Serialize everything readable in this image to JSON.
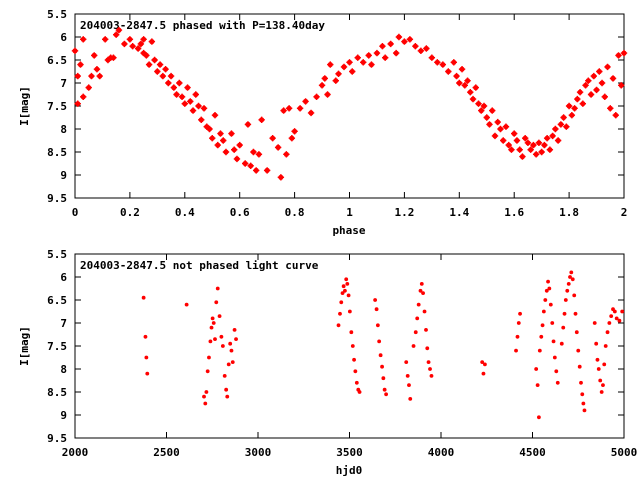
{
  "chart_data": [
    {
      "type": "scatter",
      "title": "204003-2847.5 phased with P=138.40day",
      "xlabel": "phase",
      "ylabel": "I[mag]",
      "xlim": [
        0,
        2
      ],
      "ylim": [
        5.5,
        9.5
      ],
      "y_inverted": true,
      "xticks": [
        "0",
        "0.2",
        "0.4",
        "0.6",
        "0.8",
        "1",
        "1.2",
        "1.4",
        "1.6",
        "1.8",
        "2"
      ],
      "yticks": [
        "5.5",
        "6",
        "6.5",
        "7",
        "7.5",
        "8",
        "8.5",
        "9",
        "9.5"
      ],
      "grid": false,
      "marker_color": "#ff0000",
      "points": [
        [
          0.0,
          6.3
        ],
        [
          0.01,
          6.85
        ],
        [
          0.01,
          7.45
        ],
        [
          0.02,
          6.6
        ],
        [
          0.03,
          7.3
        ],
        [
          0.03,
          6.05
        ],
        [
          0.05,
          7.1
        ],
        [
          0.06,
          6.85
        ],
        [
          0.07,
          6.4
        ],
        [
          0.08,
          6.7
        ],
        [
          0.09,
          6.85
        ],
        [
          0.11,
          6.05
        ],
        [
          0.12,
          6.5
        ],
        [
          0.13,
          6.45
        ],
        [
          0.14,
          6.45
        ],
        [
          0.15,
          5.95
        ],
        [
          0.16,
          5.85
        ],
        [
          0.18,
          6.15
        ],
        [
          0.2,
          6.05
        ],
        [
          0.21,
          6.2
        ],
        [
          0.23,
          6.25
        ],
        [
          0.24,
          6.15
        ],
        [
          0.25,
          6.05
        ],
        [
          0.25,
          6.35
        ],
        [
          0.26,
          6.4
        ],
        [
          0.27,
          6.6
        ],
        [
          0.28,
          6.1
        ],
        [
          0.29,
          6.5
        ],
        [
          0.3,
          6.75
        ],
        [
          0.31,
          6.6
        ],
        [
          0.32,
          6.85
        ],
        [
          0.33,
          6.7
        ],
        [
          0.34,
          7.0
        ],
        [
          0.35,
          6.85
        ],
        [
          0.36,
          7.1
        ],
        [
          0.37,
          7.25
        ],
        [
          0.38,
          7.0
        ],
        [
          0.39,
          7.3
        ],
        [
          0.4,
          7.45
        ],
        [
          0.41,
          7.1
        ],
        [
          0.42,
          7.4
        ],
        [
          0.43,
          7.6
        ],
        [
          0.44,
          7.25
        ],
        [
          0.45,
          7.5
        ],
        [
          0.46,
          7.8
        ],
        [
          0.47,
          7.55
        ],
        [
          0.48,
          7.95
        ],
        [
          0.49,
          8.0
        ],
        [
          0.5,
          8.2
        ],
        [
          0.51,
          7.7
        ],
        [
          0.52,
          8.35
        ],
        [
          0.53,
          8.1
        ],
        [
          0.54,
          8.25
        ],
        [
          0.55,
          8.5
        ],
        [
          0.57,
          8.1
        ],
        [
          0.58,
          8.45
        ],
        [
          0.59,
          8.65
        ],
        [
          0.6,
          8.35
        ],
        [
          0.62,
          8.75
        ],
        [
          0.63,
          7.9
        ],
        [
          0.64,
          8.8
        ],
        [
          0.65,
          8.5
        ],
        [
          0.66,
          8.9
        ],
        [
          0.67,
          8.55
        ],
        [
          0.68,
          7.8
        ],
        [
          0.7,
          8.9
        ],
        [
          0.72,
          8.2
        ],
        [
          0.74,
          8.4
        ],
        [
          0.75,
          9.05
        ],
        [
          0.76,
          7.6
        ],
        [
          0.77,
          8.55
        ],
        [
          0.78,
          7.55
        ],
        [
          0.79,
          8.2
        ],
        [
          0.8,
          8.05
        ],
        [
          0.82,
          7.55
        ],
        [
          0.84,
          7.4
        ],
        [
          0.86,
          7.65
        ],
        [
          0.88,
          7.3
        ],
        [
          0.9,
          7.05
        ],
        [
          0.91,
          6.9
        ],
        [
          0.92,
          7.25
        ],
        [
          0.93,
          6.6
        ],
        [
          0.95,
          6.95
        ],
        [
          0.96,
          6.8
        ],
        [
          0.98,
          6.65
        ],
        [
          1.0,
          6.55
        ],
        [
          1.01,
          6.75
        ],
        [
          1.03,
          6.45
        ],
        [
          1.05,
          6.55
        ],
        [
          1.07,
          6.4
        ],
        [
          1.08,
          6.6
        ],
        [
          1.1,
          6.35
        ],
        [
          1.12,
          6.2
        ],
        [
          1.13,
          6.45
        ],
        [
          1.15,
          6.15
        ],
        [
          1.17,
          6.35
        ],
        [
          1.18,
          6.0
        ],
        [
          1.2,
          6.1
        ],
        [
          1.22,
          6.05
        ],
        [
          1.24,
          6.2
        ],
        [
          1.26,
          6.3
        ],
        [
          1.28,
          6.25
        ],
        [
          1.3,
          6.45
        ],
        [
          1.32,
          6.55
        ],
        [
          1.34,
          6.6
        ],
        [
          1.36,
          6.75
        ],
        [
          1.38,
          6.55
        ],
        [
          1.39,
          6.85
        ],
        [
          1.4,
          7.0
        ],
        [
          1.41,
          6.7
        ],
        [
          1.42,
          7.05
        ],
        [
          1.43,
          6.95
        ],
        [
          1.44,
          7.2
        ],
        [
          1.45,
          7.35
        ],
        [
          1.46,
          7.1
        ],
        [
          1.47,
          7.45
        ],
        [
          1.48,
          7.6
        ],
        [
          1.49,
          7.5
        ],
        [
          1.5,
          7.75
        ],
        [
          1.51,
          7.9
        ],
        [
          1.52,
          7.6
        ],
        [
          1.53,
          8.15
        ],
        [
          1.54,
          7.85
        ],
        [
          1.55,
          8.0
        ],
        [
          1.56,
          8.25
        ],
        [
          1.57,
          7.95
        ],
        [
          1.58,
          8.35
        ],
        [
          1.59,
          8.45
        ],
        [
          1.6,
          8.1
        ],
        [
          1.61,
          8.25
        ],
        [
          1.62,
          8.45
        ],
        [
          1.63,
          8.6
        ],
        [
          1.64,
          8.2
        ],
        [
          1.65,
          8.3
        ],
        [
          1.66,
          8.45
        ],
        [
          1.67,
          8.35
        ],
        [
          1.68,
          8.55
        ],
        [
          1.69,
          8.3
        ],
        [
          1.7,
          8.5
        ],
        [
          1.71,
          8.35
        ],
        [
          1.72,
          8.2
        ],
        [
          1.73,
          8.45
        ],
        [
          1.74,
          8.15
        ],
        [
          1.75,
          8.0
        ],
        [
          1.76,
          8.25
        ],
        [
          1.77,
          7.9
        ],
        [
          1.78,
          7.75
        ],
        [
          1.79,
          7.95
        ],
        [
          1.8,
          7.5
        ],
        [
          1.81,
          7.7
        ],
        [
          1.82,
          7.55
        ],
        [
          1.83,
          7.35
        ],
        [
          1.84,
          7.2
        ],
        [
          1.85,
          7.45
        ],
        [
          1.86,
          7.05
        ],
        [
          1.87,
          6.95
        ],
        [
          1.88,
          7.25
        ],
        [
          1.89,
          6.85
        ],
        [
          1.9,
          7.15
        ],
        [
          1.91,
          6.75
        ],
        [
          1.92,
          7.0
        ],
        [
          1.93,
          7.3
        ],
        [
          1.94,
          6.65
        ],
        [
          1.95,
          7.55
        ],
        [
          1.96,
          6.9
        ],
        [
          1.97,
          7.7
        ],
        [
          1.98,
          6.4
        ],
        [
          1.99,
          7.05
        ],
        [
          2.0,
          6.35
        ]
      ]
    },
    {
      "type": "scatter",
      "title": "204003-2847.5 not phased light curve",
      "xlabel": "hjd0",
      "ylabel": "I[mag]",
      "xlim": [
        2000,
        5000
      ],
      "ylim": [
        5.5,
        9.5
      ],
      "y_inverted": true,
      "xticks": [
        "2000",
        "2500",
        "3000",
        "3500",
        "4000",
        "4500",
        "5000"
      ],
      "yticks": [
        "5.5",
        "6",
        "6.5",
        "7",
        "7.5",
        "8",
        "8.5",
        "9",
        "9.5"
      ],
      "grid": false,
      "marker_color": "#ff0000",
      "points": [
        [
          2375,
          6.45
        ],
        [
          2385,
          7.3
        ],
        [
          2390,
          7.75
        ],
        [
          2395,
          8.1
        ],
        [
          2610,
          6.6
        ],
        [
          2705,
          8.6
        ],
        [
          2712,
          8.75
        ],
        [
          2718,
          8.5
        ],
        [
          2725,
          8.05
        ],
        [
          2732,
          7.75
        ],
        [
          2740,
          7.4
        ],
        [
          2746,
          7.1
        ],
        [
          2752,
          6.9
        ],
        [
          2758,
          7.0
        ],
        [
          2765,
          7.35
        ],
        [
          2772,
          6.55
        ],
        [
          2780,
          6.25
        ],
        [
          2790,
          6.85
        ],
        [
          2800,
          7.3
        ],
        [
          2808,
          7.5
        ],
        [
          2818,
          8.15
        ],
        [
          2826,
          8.45
        ],
        [
          2832,
          8.6
        ],
        [
          2840,
          7.9
        ],
        [
          2848,
          7.45
        ],
        [
          2855,
          7.6
        ],
        [
          2862,
          7.85
        ],
        [
          2872,
          7.15
        ],
        [
          2880,
          7.35
        ],
        [
          3440,
          7.05
        ],
        [
          3448,
          6.8
        ],
        [
          3455,
          6.55
        ],
        [
          3462,
          6.35
        ],
        [
          3468,
          6.2
        ],
        [
          3475,
          6.3
        ],
        [
          3482,
          6.05
        ],
        [
          3488,
          6.15
        ],
        [
          3495,
          6.4
        ],
        [
          3502,
          6.75
        ],
        [
          3510,
          7.2
        ],
        [
          3518,
          7.5
        ],
        [
          3525,
          7.8
        ],
        [
          3532,
          8.05
        ],
        [
          3540,
          8.3
        ],
        [
          3548,
          8.45
        ],
        [
          3555,
          8.5
        ],
        [
          3640,
          6.5
        ],
        [
          3648,
          6.7
        ],
        [
          3655,
          7.05
        ],
        [
          3662,
          7.4
        ],
        [
          3670,
          7.7
        ],
        [
          3678,
          7.95
        ],
        [
          3685,
          8.2
        ],
        [
          3692,
          8.45
        ],
        [
          3700,
          8.55
        ],
        [
          3810,
          7.85
        ],
        [
          3818,
          8.15
        ],
        [
          3825,
          8.35
        ],
        [
          3832,
          8.65
        ],
        [
          3850,
          7.5
        ],
        [
          3862,
          7.2
        ],
        [
          3870,
          6.9
        ],
        [
          3878,
          6.6
        ],
        [
          3888,
          6.3
        ],
        [
          3895,
          6.15
        ],
        [
          3902,
          6.35
        ],
        [
          3910,
          6.75
        ],
        [
          3918,
          7.15
        ],
        [
          3925,
          7.55
        ],
        [
          3932,
          7.85
        ],
        [
          3940,
          8.0
        ],
        [
          3948,
          8.15
        ],
        [
          4225,
          7.85
        ],
        [
          4232,
          8.1
        ],
        [
          4240,
          7.9
        ],
        [
          4410,
          7.6
        ],
        [
          4418,
          7.3
        ],
        [
          4425,
          7.0
        ],
        [
          4432,
          6.8
        ],
        [
          4520,
          8.0
        ],
        [
          4528,
          8.35
        ],
        [
          4535,
          9.05
        ],
        [
          4540,
          7.6
        ],
        [
          4548,
          7.3
        ],
        [
          4555,
          7.05
        ],
        [
          4562,
          6.75
        ],
        [
          4570,
          6.5
        ],
        [
          4578,
          6.3
        ],
        [
          4585,
          6.1
        ],
        [
          4592,
          6.25
        ],
        [
          4600,
          6.6
        ],
        [
          4608,
          7.0
        ],
        [
          4615,
          7.4
        ],
        [
          4622,
          7.75
        ],
        [
          4630,
          8.05
        ],
        [
          4638,
          8.3
        ],
        [
          4660,
          7.45
        ],
        [
          4668,
          7.1
        ],
        [
          4675,
          6.8
        ],
        [
          4682,
          6.5
        ],
        [
          4690,
          6.3
        ],
        [
          4698,
          6.15
        ],
        [
          4705,
          6.0
        ],
        [
          4712,
          5.9
        ],
        [
          4720,
          6.05
        ],
        [
          4728,
          6.4
        ],
        [
          4735,
          6.8
        ],
        [
          4742,
          7.2
        ],
        [
          4750,
          7.6
        ],
        [
          4758,
          7.95
        ],
        [
          4765,
          8.3
        ],
        [
          4772,
          8.55
        ],
        [
          4778,
          8.75
        ],
        [
          4784,
          8.9
        ],
        [
          4840,
          7.0
        ],
        [
          4848,
          7.45
        ],
        [
          4855,
          7.8
        ],
        [
          4862,
          8.0
        ],
        [
          4870,
          8.25
        ],
        [
          4878,
          8.5
        ],
        [
          4885,
          8.35
        ],
        [
          4892,
          7.9
        ],
        [
          4900,
          7.5
        ],
        [
          4910,
          7.2
        ],
        [
          4920,
          7.0
        ],
        [
          4930,
          6.85
        ],
        [
          4940,
          6.7
        ],
        [
          4950,
          6.75
        ],
        [
          4960,
          6.9
        ],
        [
          4975,
          6.95
        ],
        [
          4990,
          6.75
        ]
      ]
    }
  ]
}
